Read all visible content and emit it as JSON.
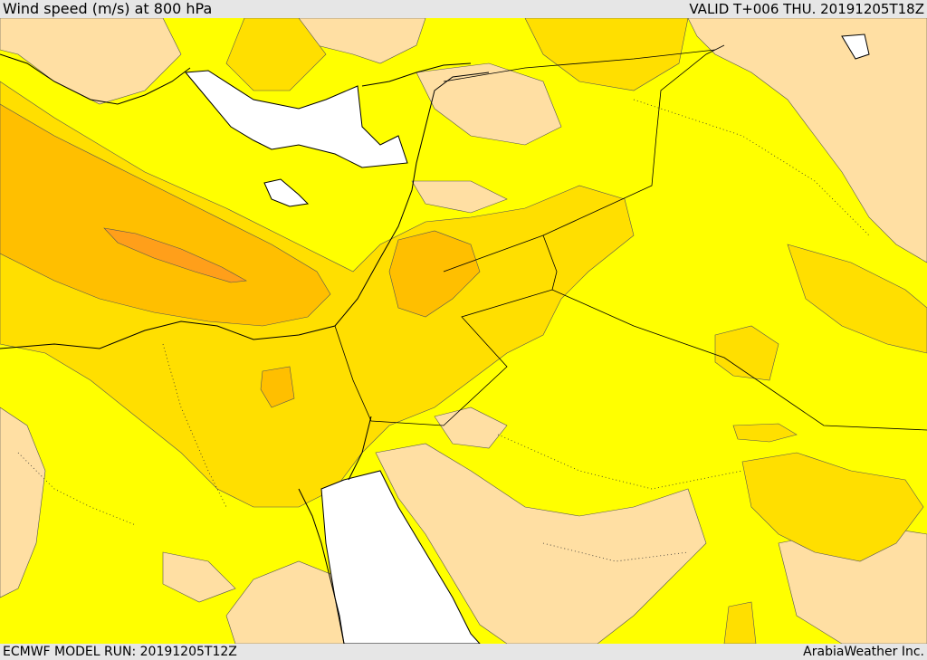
{
  "header": {
    "title": "Wind speed (m/s) at 800 hPa",
    "valid": "VALID T+006 THU. 20191205T18Z"
  },
  "footer": {
    "model_run": "ECMWF MODEL RUN: 20191205T12Z",
    "credit": "ArabiaWeather Inc."
  },
  "colors": {
    "light_wind": "#ffdfa3",
    "base_yellow": "#ffff00",
    "gold": "#ffdf00",
    "amber": "#ffbf00",
    "orange": "#ff9f1a",
    "sea_white": "#ffffff"
  }
}
